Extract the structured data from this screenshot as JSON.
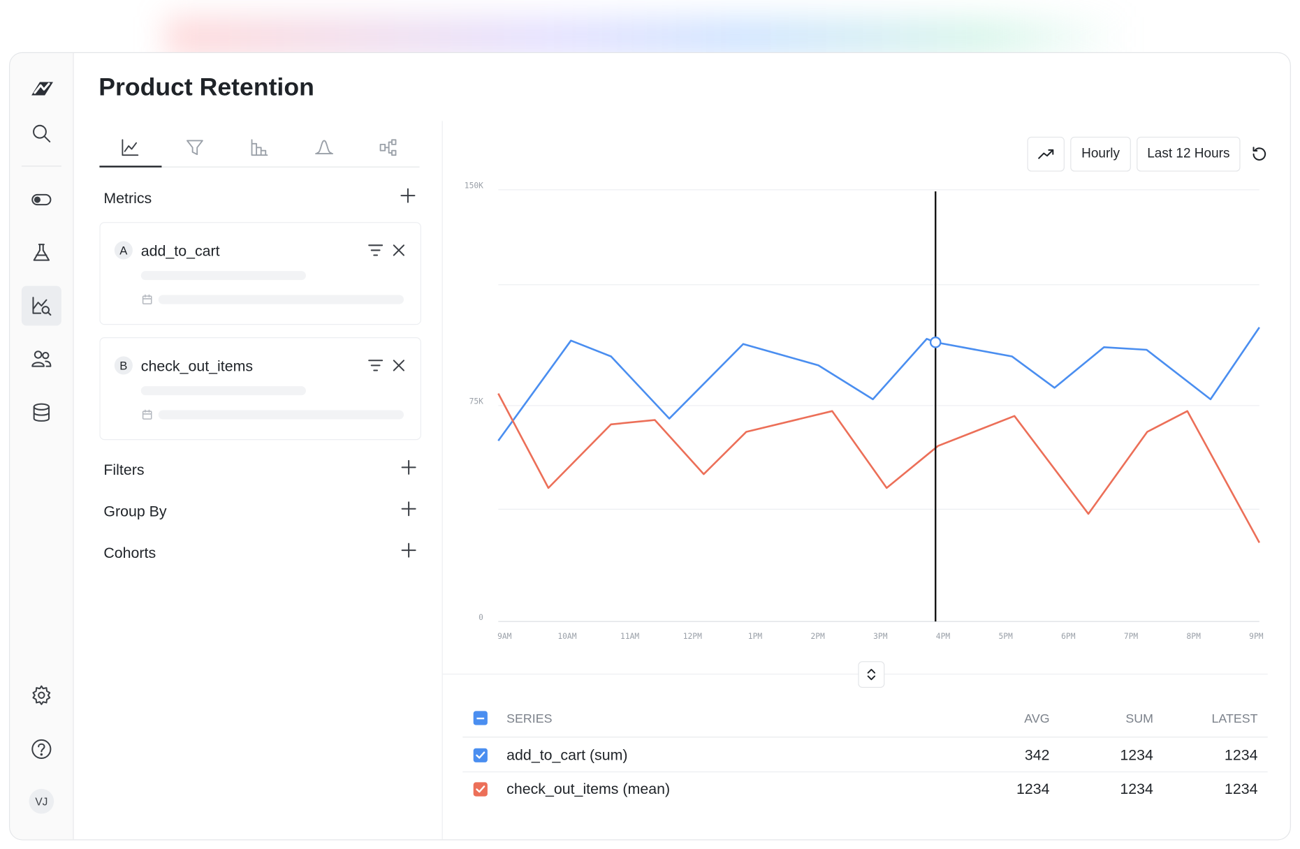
{
  "sidebar": {
    "avatar": "VJ"
  },
  "header": {
    "title": "Product Retention"
  },
  "panel": {
    "metrics_label": "Metrics",
    "metrics": [
      {
        "letter": "A",
        "name": "add_to_cart"
      },
      {
        "letter": "B",
        "name": "check_out_items"
      }
    ],
    "sections": [
      "Filters",
      "Group By",
      "Cohorts"
    ]
  },
  "toolbar": {
    "interval": "Hourly",
    "range": "Last 12 Hours"
  },
  "chart_data": {
    "type": "line",
    "xlim": [
      8.9,
      21.05
    ],
    "xticks": [
      {
        "value": 9,
        "label": "9AM"
      },
      {
        "value": 10,
        "label": "10AM"
      },
      {
        "value": 11,
        "label": "11AM"
      },
      {
        "value": 12,
        "label": "12PM"
      },
      {
        "value": 13,
        "label": "1PM"
      },
      {
        "value": 14,
        "label": "2PM"
      },
      {
        "value": 15,
        "label": "3PM"
      },
      {
        "value": 16,
        "label": "4PM"
      },
      {
        "value": 17,
        "label": "5PM"
      },
      {
        "value": 18,
        "label": "6PM"
      },
      {
        "value": 19,
        "label": "7PM"
      },
      {
        "value": 20,
        "label": "8PM"
      },
      {
        "value": 21,
        "label": "9PM"
      }
    ],
    "ylim": [
      0,
      150000
    ],
    "yticks": [
      {
        "value": 0,
        "label": "0"
      },
      {
        "value": 75000,
        "label": "75K"
      },
      {
        "value": 150000,
        "label": "150K"
      }
    ],
    "ygrid": [
      39000,
      117000
    ],
    "grid": true,
    "highlight_index": 8,
    "series": [
      {
        "name": "add_to_cart",
        "color": "#4a8ef0",
        "x": [
          8.9,
          10.06,
          10.7,
          11.63,
          12.81,
          14.01,
          14.88,
          15.74,
          15.88,
          17.1,
          17.78,
          18.57,
          19.25,
          20.27,
          21.05
        ],
        "values": [
          62800,
          97600,
          92100,
          70500,
          96400,
          89000,
          77200,
          98200,
          97000,
          92100,
          81200,
          95300,
          94400,
          77200,
          102200
        ]
      },
      {
        "name": "check_out_items",
        "color": "#ec6f58",
        "x": [
          8.9,
          9.7,
          10.7,
          11.4,
          12.18,
          12.86,
          14.23,
          15.1,
          15.92,
          17.14,
          18.32,
          19.26,
          19.9,
          21.05
        ],
        "values": [
          79200,
          46400,
          68500,
          70000,
          51200,
          65900,
          73100,
          46400,
          61000,
          71400,
          37400,
          65900,
          73100,
          27400
        ]
      }
    ]
  },
  "table": {
    "columns": [
      "SERIES",
      "AVG",
      "SUM",
      "LATEST"
    ],
    "rows": [
      [
        "add_to_cart (sum)",
        342,
        1234,
        1234
      ],
      [
        "check_out_items (mean)",
        1234,
        1234,
        1234
      ]
    ]
  }
}
